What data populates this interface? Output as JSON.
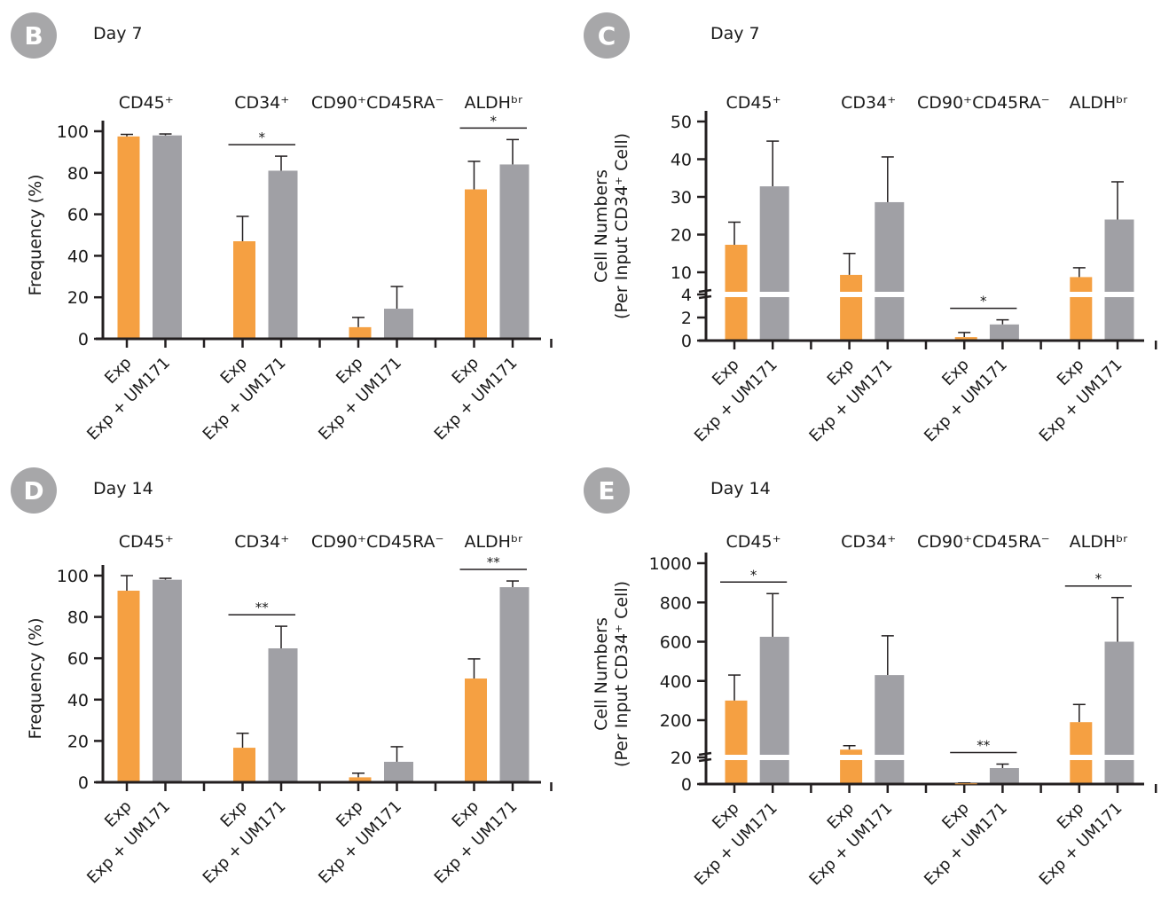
{
  "colors": {
    "exp": "#F5A042",
    "exp_um171": "#A0A0A5",
    "axis": "#231F20",
    "badge": "#A7A7A9"
  },
  "chart_data": [
    {
      "panel": "B",
      "type": "bar",
      "title": "Day 7",
      "ylabel": "Frequency (%)",
      "ylim": [
        0,
        100
      ],
      "yticks": [
        0,
        20,
        40,
        60,
        80,
        100
      ],
      "broken_axis": false,
      "groups": [
        "CD45⁺",
        "CD34⁺",
        "CD90⁺CD45RA⁻",
        "ALDHᵇʳ"
      ],
      "categories": [
        "Exp",
        "Exp + UM171"
      ],
      "series": [
        {
          "name": "Exp",
          "values": [
            97.5,
            47,
            5.6,
            72
          ],
          "error": [
            1,
            12,
            4.7,
            13.5
          ]
        },
        {
          "name": "Exp + UM171",
          "values": [
            98,
            81,
            14.5,
            84
          ],
          "error": [
            0.7,
            7,
            10.7,
            12
          ]
        }
      ],
      "significance": [
        {
          "group": 1,
          "label": "*"
        },
        {
          "group": 3,
          "label": "*"
        }
      ]
    },
    {
      "panel": "C",
      "type": "bar",
      "title": "Day 7",
      "ylabel": "Cell Numbers",
      "ylabel2": "(Per Input CD34⁺ Cell)",
      "ylim": [
        0,
        50
      ],
      "yticks": [
        0,
        2,
        4,
        10,
        20,
        30,
        40,
        50
      ],
      "broken_axis": true,
      "axis_break": 4,
      "upper_start": 10,
      "groups": [
        "CD45⁺",
        "CD34⁺",
        "CD90⁺CD45RA⁻",
        "ALDHᵇʳ"
      ],
      "categories": [
        "Exp",
        "Exp + UM171"
      ],
      "series": [
        {
          "name": "Exp",
          "values": [
            17.3,
            9.3,
            0.3,
            8.7
          ],
          "error": [
            6,
            5.7,
            0.4,
            2.5
          ]
        },
        {
          "name": "Exp + UM171",
          "values": [
            32.8,
            28.6,
            1.4,
            24
          ],
          "error": [
            12,
            12,
            0.4,
            10
          ]
        }
      ],
      "significance": [
        {
          "group": 2,
          "label": "*"
        }
      ]
    },
    {
      "panel": "D",
      "type": "bar",
      "title": "Day 14",
      "ylabel": "Frequency (%)",
      "ylim": [
        0,
        100
      ],
      "yticks": [
        0,
        20,
        40,
        60,
        80,
        100
      ],
      "broken_axis": false,
      "groups": [
        "CD45⁺",
        "CD34⁺",
        "CD90⁺CD45RA⁻",
        "ALDHᵇʳ"
      ],
      "categories": [
        "Exp",
        "Exp + UM171"
      ],
      "series": [
        {
          "name": "Exp",
          "values": [
            92.7,
            16.7,
            2.4,
            50.2
          ],
          "error": [
            7.3,
            7,
            2,
            9.5
          ]
        },
        {
          "name": "Exp + UM171",
          "values": [
            98,
            64.8,
            9.9,
            94.4
          ],
          "error": [
            0.7,
            10.7,
            7.3,
            3
          ]
        }
      ],
      "significance": [
        {
          "group": 1,
          "label": "**"
        },
        {
          "group": 3,
          "label": "**"
        }
      ]
    },
    {
      "panel": "E",
      "type": "bar",
      "title": "Day 14",
      "ylabel": "Cell Numbers",
      "ylabel2": "(Per Input CD34⁺ Cell)",
      "ylim": [
        0,
        1000
      ],
      "yticks": [
        0,
        20,
        200,
        400,
        600,
        800,
        1000
      ],
      "broken_axis": true,
      "axis_break": 20,
      "upper_start": 20,
      "groups": [
        "CD45⁺",
        "CD34⁺",
        "CD90⁺CD45RA⁻",
        "ALDHᵇʳ"
      ],
      "categories": [
        "Exp",
        "Exp + UM171"
      ],
      "series": [
        {
          "name": "Exp",
          "values": [
            300,
            50,
            0.5,
            190
          ],
          "error": [
            130,
            20,
            0.3,
            90
          ]
        },
        {
          "name": "Exp + UM171",
          "values": [
            625,
            430,
            12,
            600
          ],
          "error": [
            220,
            200,
            3,
            225
          ]
        }
      ],
      "significance": [
        {
          "group": 0,
          "label": "*"
        },
        {
          "group": 2,
          "label": "**"
        },
        {
          "group": 3,
          "label": "*"
        }
      ]
    }
  ]
}
